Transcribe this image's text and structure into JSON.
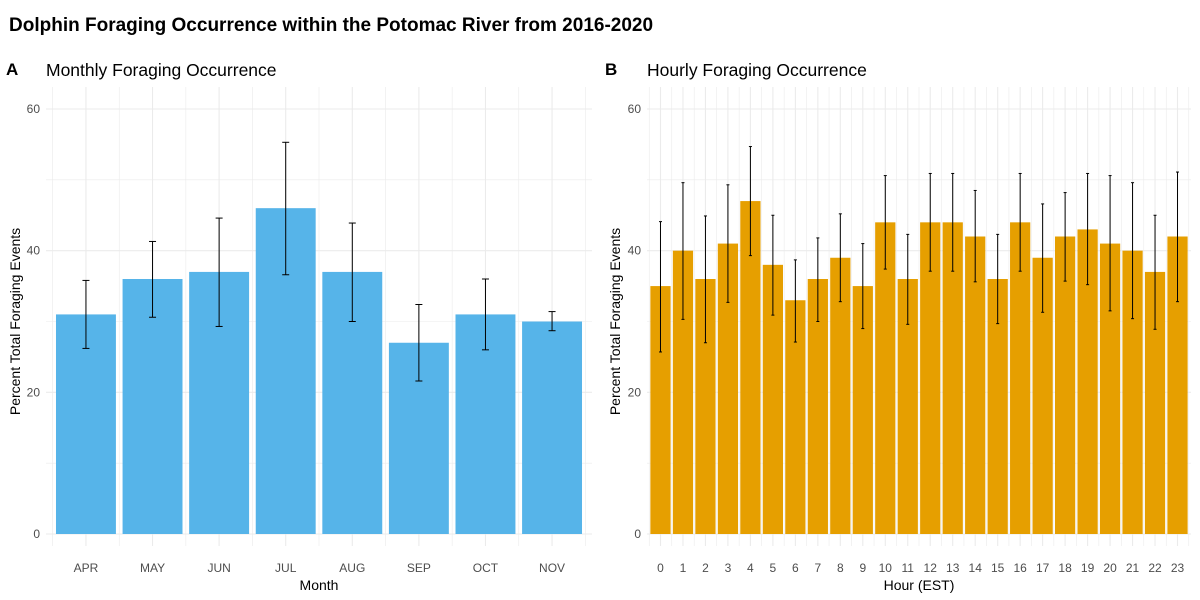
{
  "title": "Dolphin Foraging Occurrence within the Potomac River from 2016-2020",
  "panels": {
    "a": {
      "tag": "A",
      "title": "Monthly Foraging Occurrence"
    },
    "b": {
      "tag": "B",
      "title": "Hourly Foraging Occurrence"
    }
  },
  "colors": {
    "monthly_bar": "#56B4E9",
    "hourly_bar": "#E69F00",
    "grid": "#ebebeb",
    "error_bar": "#000000"
  },
  "chart_data": [
    {
      "type": "bar",
      "title": "Monthly Foraging Occurrence",
      "xlabel": "Month",
      "ylabel": "Percent Total Foraging Events",
      "ylim": [
        0,
        60
      ],
      "yticks": [
        0,
        20,
        40,
        60
      ],
      "grid": true,
      "categories": [
        "APR",
        "MAY",
        "JUN",
        "JUL",
        "AUG",
        "SEP",
        "OCT",
        "NOV"
      ],
      "values": [
        31,
        36,
        37,
        46,
        37,
        27,
        31,
        30
      ],
      "error_low": [
        26.2,
        30.6,
        29.3,
        36.6,
        30.0,
        21.6,
        26.0,
        28.7
      ],
      "error_high": [
        35.8,
        41.3,
        44.6,
        55.3,
        43.9,
        32.4,
        36.0,
        31.4
      ]
    },
    {
      "type": "bar",
      "title": "Hourly Foraging Occurrence",
      "xlabel": "Hour (EST)",
      "ylabel": "Percent Total Foraging Events",
      "ylim": [
        0,
        60
      ],
      "yticks": [
        0,
        20,
        40,
        60
      ],
      "grid": true,
      "categories": [
        "0",
        "1",
        "2",
        "3",
        "4",
        "5",
        "6",
        "7",
        "8",
        "9",
        "10",
        "11",
        "12",
        "13",
        "14",
        "15",
        "16",
        "17",
        "18",
        "19",
        "20",
        "21",
        "22",
        "23"
      ],
      "values": [
        35,
        40,
        36,
        41,
        47,
        38,
        33,
        36,
        39,
        35,
        44,
        36,
        44,
        44,
        42,
        36,
        44,
        39,
        42,
        43,
        41,
        40,
        37,
        42
      ],
      "error_low": [
        25.7,
        30.3,
        27.0,
        32.7,
        39.3,
        30.9,
        27.1,
        30.0,
        32.8,
        29.0,
        37.4,
        29.6,
        37.1,
        37.1,
        35.6,
        29.7,
        37.1,
        31.3,
        35.7,
        35.2,
        31.5,
        30.4,
        28.9,
        32.8
      ],
      "error_high": [
        44.1,
        49.6,
        44.9,
        49.3,
        54.7,
        45.0,
        38.7,
        41.8,
        45.2,
        41.0,
        50.6,
        42.3,
        50.9,
        50.9,
        48.5,
        42.3,
        50.9,
        46.6,
        48.2,
        50.9,
        50.6,
        49.6,
        45.0,
        51.1
      ]
    }
  ]
}
